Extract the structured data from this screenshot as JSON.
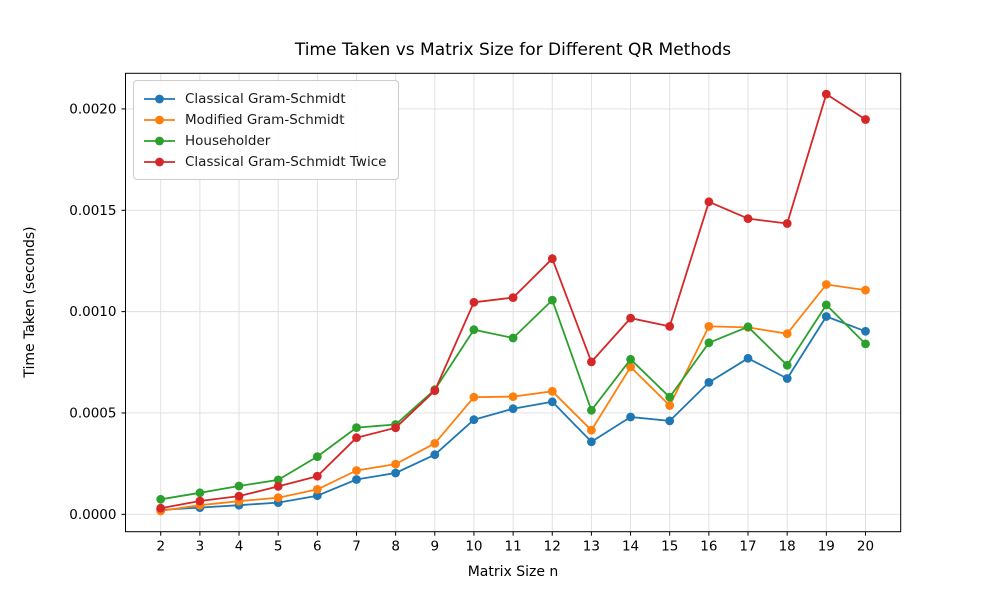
{
  "title": "Time Taken vs Matrix Size for Different QR Methods",
  "axes": {
    "xlabel": "Matrix Size n",
    "ylabel": "Time Taken (seconds)",
    "x_tick_labels": [
      "2",
      "3",
      "4",
      "5",
      "6",
      "7",
      "8",
      "9",
      "10",
      "11",
      "12",
      "13",
      "14",
      "15",
      "16",
      "17",
      "18",
      "19",
      "20"
    ],
    "y_tick_labels": [
      "0.0000",
      "0.0005",
      "0.0010",
      "0.0015",
      "0.0020"
    ]
  },
  "chart_data": {
    "type": "line",
    "title": "Time Taken vs Matrix Size for Different QR Methods",
    "xlabel": "Matrix Size n",
    "ylabel": "Time Taken (seconds)",
    "x": [
      2,
      3,
      4,
      5,
      6,
      7,
      8,
      9,
      10,
      11,
      12,
      13,
      14,
      15,
      16,
      17,
      18,
      19,
      20
    ],
    "series": [
      {
        "name": "Classical Gram-Schmidt",
        "color": "#1f77b4",
        "values": [
          2.2e-05,
          3.3e-05,
          4.5e-05,
          5.8e-05,
          9.2e-05,
          0.000172,
          0.000204,
          0.000294,
          0.000467,
          0.000521,
          0.000555,
          0.000358,
          0.00048,
          0.000461,
          0.000651,
          0.00077,
          0.00067,
          0.000976,
          0.000903
        ]
      },
      {
        "name": "Modified Gram-Schmidt",
        "color": "#ff7f0e",
        "values": [
          1.7e-05,
          4.5e-05,
          6.5e-05,
          8.2e-05,
          0.000123,
          0.000216,
          0.000248,
          0.00035,
          0.000578,
          0.000581,
          0.000607,
          0.000415,
          0.000727,
          0.000537,
          0.000927,
          0.000922,
          0.000891,
          0.001134,
          0.001106
        ]
      },
      {
        "name": "Householder",
        "color": "#2ca02c",
        "values": [
          7.4e-05,
          0.000106,
          0.00014,
          0.00017,
          0.000285,
          0.000428,
          0.000443,
          0.000615,
          0.000911,
          0.00087,
          0.001057,
          0.000513,
          0.000765,
          0.000578,
          0.000846,
          0.000925,
          0.000735,
          0.001033,
          0.000841
        ]
      },
      {
        "name": "Classical Gram-Schmidt Twice",
        "color": "#d62728",
        "values": [
          3e-05,
          6.6e-05,
          9e-05,
          0.000138,
          0.000188,
          0.000378,
          0.000427,
          0.00061,
          0.001046,
          0.001069,
          0.001261,
          0.000752,
          0.000968,
          0.000927,
          0.001542,
          0.001459,
          0.001435,
          0.002073,
          0.001948
        ]
      }
    ],
    "x_tick_values": [
      2,
      3,
      4,
      5,
      6,
      7,
      8,
      9,
      10,
      11,
      12,
      13,
      14,
      15,
      16,
      17,
      18,
      19,
      20
    ],
    "y_tick_values": [
      0.0,
      0.0005,
      0.001,
      0.0015,
      0.002
    ],
    "xlim": [
      1.1,
      20.9
    ],
    "ylim": [
      -8.57e-05,
      0.0021758
    ],
    "grid": true,
    "legend_position": "upper left",
    "colors": {
      "grid": "#dedede",
      "spine": "#000000",
      "background": "#ffffff"
    }
  }
}
